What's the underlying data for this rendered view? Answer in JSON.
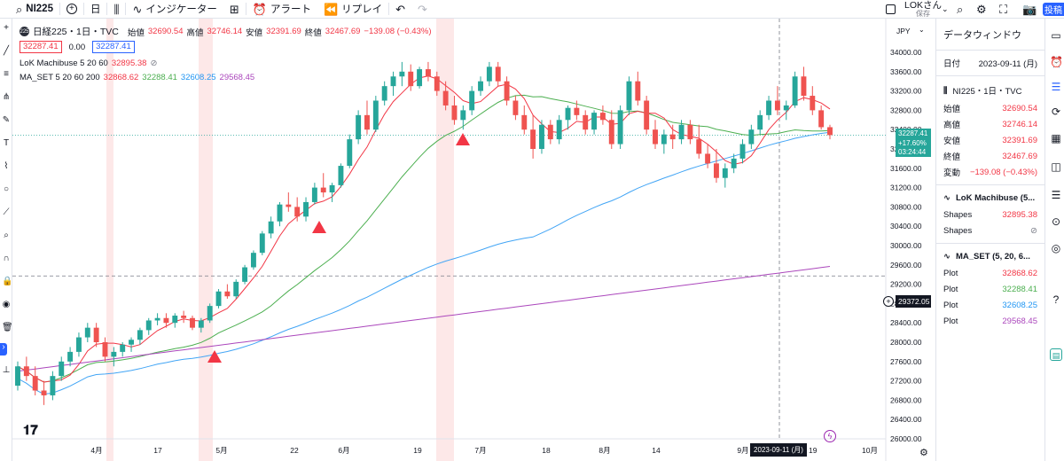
{
  "toolbar": {
    "symbol": "NI225",
    "add": "+",
    "interval": "日",
    "indicators": "インジケーター",
    "alert": "アラート",
    "replay": "リプレイ",
    "user_name": "LOKさん",
    "user_saved": "保存",
    "publish": "投稿"
  },
  "legend": {
    "logo_text": "225",
    "title": "日経225・1日・TVC",
    "ohlc": [
      {
        "label": "始値",
        "value": "32690.54"
      },
      {
        "label": "高値",
        "value": "32746.14"
      },
      {
        "label": "安値",
        "value": "32391.69"
      },
      {
        "label": "終値",
        "value": "32467.69"
      },
      {
        "label": "",
        "value": "−139.08 (−0.43%)"
      }
    ],
    "bid": "32287.41",
    "spread": "0.00",
    "ask": "32287.41",
    "ind1_name": "LoK Machibuse 5 20 60",
    "ind1_value": "32895.38",
    "ind2_name": "MA_SET 5 20 60 200",
    "ind2_values": [
      "32868.62",
      "32288.41",
      "32608.25",
      "29568.45"
    ]
  },
  "axis": {
    "currency": "JPY",
    "labels": [
      "34000.00",
      "33600.00",
      "33200.00",
      "32800.00",
      "32400.00",
      "32000.00",
      "31600.00",
      "31200.00",
      "30800.00",
      "30400.00",
      "30000.00",
      "29600.00",
      "29200.00",
      "28800.00",
      "28400.00",
      "28000.00",
      "27600.00",
      "27200.00",
      "26800.00",
      "26400.00",
      "26000.00"
    ],
    "last_price": "32287.41",
    "last_change": "+17.60%",
    "countdown": "03:24:44",
    "crosshair_price": "29372.05",
    "x_labels": [
      "4月",
      "17",
      "5月",
      "22",
      "6月",
      "19",
      "7月",
      "18",
      "8月",
      "14",
      "9月",
      "10月"
    ],
    "crosshair_date": "2023-09-11 (月)",
    "crosshair_date_tail": "19"
  },
  "data_window": {
    "title": "データウィンドウ",
    "date_label": "日付",
    "date_value": "2023-09-11 (月)",
    "symbol_title": "NI225・1日・TVC",
    "ohlc_rows": [
      {
        "label": "始値",
        "value": "32690.54"
      },
      {
        "label": "高値",
        "value": "32746.14"
      },
      {
        "label": "安値",
        "value": "32391.69"
      },
      {
        "label": "終値",
        "value": "32467.69"
      },
      {
        "label": "変動",
        "value": "−139.08 (−0.43%)"
      }
    ],
    "ind1_title": "LoK Machibuse (5...",
    "ind1_rows": [
      {
        "label": "Shapes",
        "value": "32895.38"
      },
      {
        "label": "Shapes",
        "value": "⊘"
      }
    ],
    "ind2_title": "MA_SET (5, 20, 6...",
    "ind2_rows": [
      {
        "label": "Plot",
        "value": "32868.62"
      },
      {
        "label": "Plot",
        "value": "32288.41"
      },
      {
        "label": "Plot",
        "value": "32608.25"
      },
      {
        "label": "Plot",
        "value": "29568.45"
      }
    ]
  },
  "colors": {
    "up": "#26a69a",
    "down": "#ef5350",
    "ma5": "#f23645",
    "ma20": "#4caf50",
    "ma60": "#42a5f5",
    "ma200": "#ab47bc",
    "highlight": "#fde8e8"
  },
  "chart_data": {
    "type": "candlestick",
    "ylim": [
      26000,
      34000
    ],
    "candles": [
      [
        27100,
        27600,
        27000,
        27500
      ],
      [
        27500,
        27700,
        27200,
        27300
      ],
      [
        27300,
        27500,
        26900,
        27000
      ],
      [
        27000,
        27200,
        26700,
        26900
      ],
      [
        26900,
        27400,
        26800,
        27300
      ],
      [
        27300,
        27700,
        27200,
        27600
      ],
      [
        27600,
        27900,
        27500,
        27800
      ],
      [
        27800,
        28200,
        27700,
        28100
      ],
      [
        28100,
        28400,
        28000,
        28300
      ],
      [
        28300,
        28400,
        27900,
        28000
      ],
      [
        28000,
        28100,
        27600,
        27700
      ],
      [
        27700,
        27900,
        27500,
        27800
      ],
      [
        27800,
        28000,
        27700,
        27950
      ],
      [
        27950,
        28100,
        27800,
        28050
      ],
      [
        28050,
        28300,
        27950,
        28250
      ],
      [
        28250,
        28500,
        28150,
        28450
      ],
      [
        28450,
        28600,
        28350,
        28500
      ],
      [
        28500,
        28600,
        28300,
        28400
      ],
      [
        28400,
        28600,
        28300,
        28550
      ],
      [
        28550,
        28650,
        28400,
        28500
      ],
      [
        28500,
        28550,
        28250,
        28300
      ],
      [
        28300,
        28500,
        28200,
        28450
      ],
      [
        28450,
        28800,
        28400,
        28750
      ],
      [
        28750,
        29100,
        28700,
        29050
      ],
      [
        29050,
        29200,
        28900,
        28950
      ],
      [
        28950,
        29300,
        28900,
        29250
      ],
      [
        29250,
        29600,
        29200,
        29550
      ],
      [
        29550,
        29900,
        29500,
        29850
      ],
      [
        29850,
        30300,
        29800,
        30250
      ],
      [
        30250,
        30600,
        30150,
        30500
      ],
      [
        30500,
        30900,
        30400,
        30850
      ],
      [
        30850,
        31100,
        30700,
        30800
      ],
      [
        30800,
        31000,
        30500,
        30600
      ],
      [
        30600,
        31000,
        30500,
        30900
      ],
      [
        30900,
        31300,
        30850,
        31200
      ],
      [
        31200,
        31500,
        31000,
        31100
      ],
      [
        31100,
        31300,
        30900,
        31250
      ],
      [
        31250,
        31700,
        31200,
        31650
      ],
      [
        31650,
        32300,
        31600,
        32200
      ],
      [
        32200,
        32800,
        32100,
        32700
      ],
      [
        32700,
        33000,
        32300,
        32400
      ],
      [
        32400,
        33100,
        32350,
        33000
      ],
      [
        33000,
        33400,
        32900,
        33300
      ],
      [
        33300,
        33600,
        33100,
        33500
      ],
      [
        33500,
        33800,
        33300,
        33600
      ],
      [
        33600,
        33750,
        33200,
        33300
      ],
      [
        33300,
        33700,
        33250,
        33650
      ],
      [
        33650,
        33800,
        33400,
        33500
      ],
      [
        33500,
        33600,
        33100,
        33200
      ],
      [
        33200,
        33400,
        32800,
        32900
      ],
      [
        32900,
        33100,
        32500,
        32600
      ],
      [
        32600,
        32900,
        32400,
        32800
      ],
      [
        32800,
        33300,
        32700,
        33200
      ],
      [
        33200,
        33500,
        33100,
        33400
      ],
      [
        33400,
        33800,
        33300,
        33700
      ],
      [
        33700,
        33800,
        33300,
        33400
      ],
      [
        33400,
        33500,
        32900,
        33000
      ],
      [
        33000,
        33100,
        32600,
        32700
      ],
      [
        32700,
        32900,
        32300,
        32400
      ],
      [
        32400,
        32700,
        31800,
        32000
      ],
      [
        32000,
        32600,
        31900,
        32500
      ],
      [
        32500,
        32600,
        32100,
        32200
      ],
      [
        32200,
        32700,
        32100,
        32600
      ],
      [
        32600,
        32900,
        32400,
        32850
      ],
      [
        32850,
        33000,
        32600,
        32700
      ],
      [
        32700,
        32800,
        32300,
        32400
      ],
      [
        32400,
        32800,
        32300,
        32750
      ],
      [
        32750,
        32900,
        32500,
        32600
      ],
      [
        32600,
        32800,
        32000,
        32100
      ],
      [
        32100,
        32900,
        32000,
        32800
      ],
      [
        32800,
        33500,
        32700,
        33400
      ],
      [
        33400,
        33600,
        32900,
        33000
      ],
      [
        33000,
        33100,
        32300,
        32400
      ],
      [
        32400,
        32600,
        32000,
        32100
      ],
      [
        32100,
        32400,
        31900,
        32300
      ],
      [
        32300,
        32500,
        32000,
        32200
      ],
      [
        32200,
        32600,
        32100,
        32500
      ],
      [
        32500,
        32600,
        32100,
        32200
      ],
      [
        32200,
        32500,
        31800,
        31900
      ],
      [
        31900,
        32100,
        31600,
        31700
      ],
      [
        31700,
        32000,
        31300,
        31400
      ],
      [
        31400,
        31700,
        31200,
        31600
      ],
      [
        31600,
        31900,
        31500,
        31800
      ],
      [
        31800,
        32200,
        31700,
        32100
      ],
      [
        32100,
        32500,
        32000,
        32400
      ],
      [
        32400,
        32800,
        32300,
        32700
      ],
      [
        32700,
        33100,
        32600,
        33000
      ],
      [
        33000,
        33300,
        32700,
        32800
      ],
      [
        32800,
        33000,
        32600,
        32900
      ],
      [
        32900,
        33600,
        32850,
        33500
      ],
      [
        33500,
        33700,
        33000,
        33100
      ],
      [
        33100,
        33300,
        32700,
        32800
      ],
      [
        32800,
        32900,
        32400,
        32450
      ],
      [
        32450,
        32500,
        32200,
        32287
      ]
    ]
  }
}
